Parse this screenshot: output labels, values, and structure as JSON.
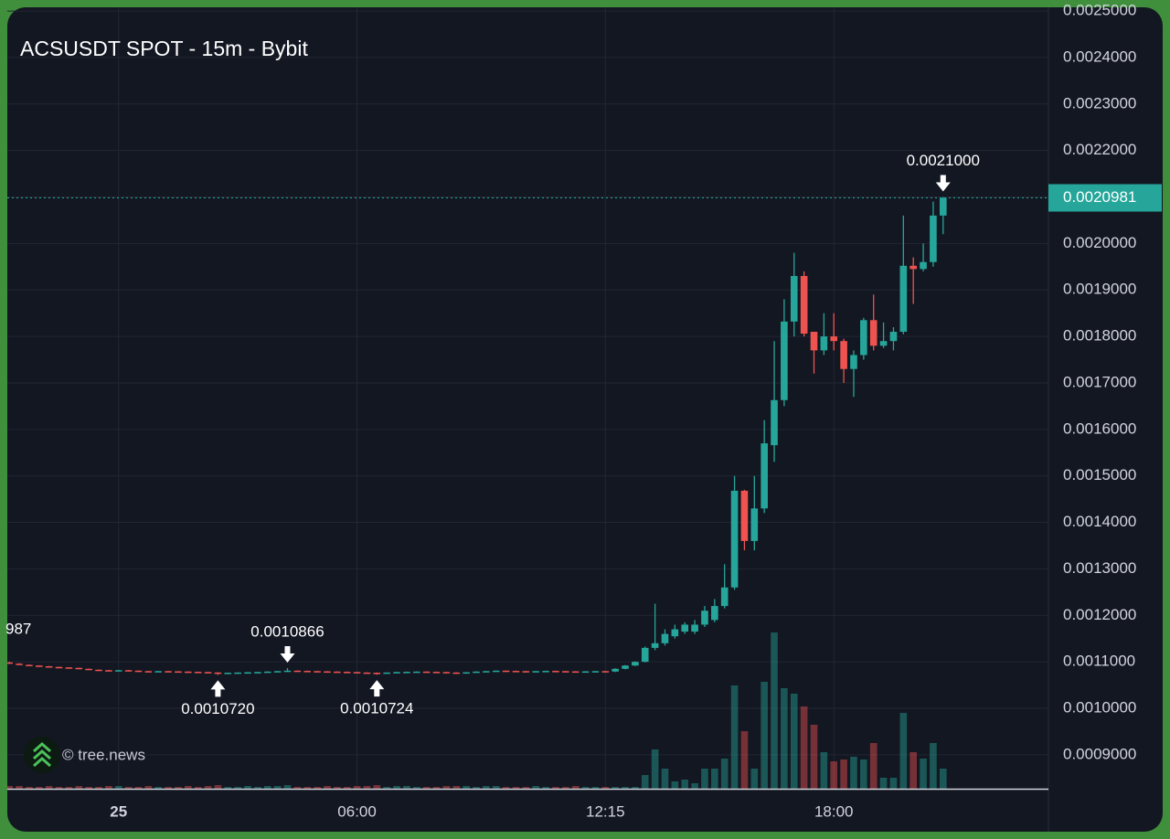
{
  "chart_data": {
    "type": "candlestick",
    "title": "ACSUSDT SPOT - 15m - Bybit",
    "watermark": "© tree.news",
    "left_label": "987",
    "colors": {
      "up": "#26a69a",
      "down": "#ef5350"
    },
    "x": [
      -2.75,
      -2.5,
      -2.25,
      -2,
      -1.75,
      -1.5,
      -1.25,
      -1,
      -0.75,
      -0.5,
      -0.25,
      0,
      0.25,
      0.5,
      0.75,
      1,
      1.25,
      1.5,
      1.75,
      2,
      2.25,
      2.5,
      2.75,
      3,
      3.25,
      3.5,
      3.75,
      4,
      4.25,
      4.5,
      4.75,
      5,
      5.25,
      5.5,
      5.75,
      6,
      6.25,
      6.5,
      6.75,
      7,
      7.25,
      7.5,
      7.75,
      8,
      8.25,
      8.5,
      8.75,
      9,
      9.25,
      9.5,
      9.75,
      10,
      10.25,
      10.5,
      10.75,
      11,
      11.25,
      11.5,
      11.75,
      12,
      12.25,
      12.5,
      12.75,
      13,
      13.25,
      13.5,
      13.75,
      14,
      14.25,
      14.5,
      14.75,
      15,
      15.25,
      15.5,
      15.75,
      16,
      16.25,
      16.5,
      16.75,
      17,
      17.25,
      17.5,
      17.75,
      18,
      18.25,
      18.5,
      18.75,
      19,
      19.25,
      19.5,
      19.75,
      20,
      20.25,
      20.5,
      20.75
    ],
    "open": [
      0.0010987,
      0.001096,
      0.0010935,
      0.001092,
      0.0010905,
      0.001089,
      0.001088,
      0.001087,
      0.001085,
      0.001083,
      0.001082,
      0.0010815,
      0.001082,
      0.001081,
      0.00108,
      0.001079,
      0.00108,
      0.0010795,
      0.001079,
      0.0010785,
      0.001078,
      0.001077,
      0.001076,
      0.0010765,
      0.001077,
      0.0010775,
      0.001078,
      0.001079,
      0.00108,
      0.001081,
      0.0010805,
      0.00108,
      0.0010795,
      0.001079,
      0.0010785,
      0.001078,
      0.001077,
      0.0010765,
      0.001076,
      0.001077,
      0.001078,
      0.0010785,
      0.001079,
      0.0010785,
      0.001078,
      0.001077,
      0.001076,
      0.0010775,
      0.001079,
      0.00108,
      0.001081,
      0.0010805,
      0.00108,
      0.0010795,
      0.00108,
      0.0010805,
      0.00108,
      0.0010795,
      0.001079,
      0.0010795,
      0.00108,
      0.001079,
      0.001085,
      0.001092,
      0.0011,
      0.00113,
      0.00114,
      0.001155,
      0.001165,
      0.001165,
      0.00118,
      0.00119,
      0.00122,
      0.00126,
      0.001468,
      0.00136,
      0.00143,
      0.001566,
      0.001663,
      0.001832,
      0.00193,
      0.00181,
      0.00177,
      0.0018,
      0.00179,
      0.00173,
      0.00176,
      0.001835,
      0.00178,
      0.00179,
      0.00181,
      0.001952,
      0.001945,
      0.00196,
      0.00206
    ],
    "high": [
      0.0011,
      0.001097,
      0.001094,
      0.0010925,
      0.001091,
      0.0010895,
      0.0010885,
      0.0010875,
      0.0010855,
      0.0010835,
      0.0010825,
      0.0010825,
      0.0010825,
      0.0010815,
      0.0010805,
      0.0010805,
      0.0010805,
      0.00108,
      0.0010795,
      0.001079,
      0.0010785,
      0.0010775,
      0.001077,
      0.0010775,
      0.001078,
      0.0010785,
      0.0010795,
      0.0010805,
      0.0010866,
      0.0010815,
      0.001081,
      0.0010805,
      0.00108,
      0.0010795,
      0.001079,
      0.0010785,
      0.0010775,
      0.001077,
      0.0010775,
      0.0010785,
      0.001079,
      0.0010795,
      0.0010795,
      0.001079,
      0.0010785,
      0.0010775,
      0.001078,
      0.0010795,
      0.0010805,
      0.0010815,
      0.0010815,
      0.001081,
      0.0010805,
      0.0010805,
      0.001081,
      0.001081,
      0.0010805,
      0.00108,
      0.00108,
      0.0010805,
      0.0010805,
      0.001086,
      0.001093,
      0.001101,
      0.001133,
      0.001225,
      0.00117,
      0.00118,
      0.001185,
      0.00119,
      0.00122,
      0.001235,
      0.00131,
      0.0015,
      0.00147,
      0.0015,
      0.00162,
      0.00179,
      0.00188,
      0.00198,
      0.00194,
      0.00181,
      0.00185,
      0.00185,
      0.001795,
      0.00177,
      0.00184,
      0.00189,
      0.00183,
      0.00182,
      0.00206,
      0.00197,
      0.002,
      0.00209,
      0.0021
    ],
    "low": [
      0.0010955,
      0.001093,
      0.0010915,
      0.00109,
      0.0010885,
      0.0010875,
      0.0010865,
      0.0010845,
      0.0010825,
      0.0010815,
      0.001081,
      0.001081,
      0.0010805,
      0.0010795,
      0.0010785,
      0.0010785,
      0.001079,
      0.0010785,
      0.001078,
      0.0010775,
      0.0010765,
      0.001072,
      0.0010755,
      0.001076,
      0.0010765,
      0.001077,
      0.0010775,
      0.0010785,
      0.0010795,
      0.00108,
      0.0010795,
      0.001079,
      0.0010785,
      0.001078,
      0.0010775,
      0.0010765,
      0.001076,
      0.0010724,
      0.0010755,
      0.0010765,
      0.0010775,
      0.001078,
      0.001078,
      0.0010775,
      0.0010765,
      0.0010755,
      0.0010755,
      0.001077,
      0.0010785,
      0.0010795,
      0.00108,
      0.0010795,
      0.001079,
      0.001079,
      0.0010795,
      0.0010795,
      0.001079,
      0.0010785,
      0.0010785,
      0.001079,
      0.0010785,
      0.001078,
      0.001084,
      0.001091,
      0.001099,
      0.001125,
      0.001135,
      0.00115,
      0.00116,
      0.00116,
      0.001175,
      0.001185,
      0.001215,
      0.001255,
      0.00134,
      0.00134,
      0.00142,
      0.00153,
      0.00165,
      0.0018,
      0.0018,
      0.00172,
      0.00176,
      0.00177,
      0.0017,
      0.00167,
      0.00175,
      0.00177,
      0.001775,
      0.00177,
      0.001805,
      0.00187,
      0.00194,
      0.00195,
      0.00202
    ],
    "close": [
      0.001096,
      0.0010935,
      0.001092,
      0.0010905,
      0.001089,
      0.001088,
      0.001087,
      0.001085,
      0.001083,
      0.001082,
      0.0010815,
      0.001082,
      0.001081,
      0.00108,
      0.001079,
      0.00108,
      0.0010795,
      0.001079,
      0.0010785,
      0.001078,
      0.001077,
      0.001076,
      0.0010765,
      0.001077,
      0.0010775,
      0.001078,
      0.001079,
      0.00108,
      0.001081,
      0.0010805,
      0.00108,
      0.0010795,
      0.001079,
      0.0010785,
      0.001078,
      0.001077,
      0.0010765,
      0.001076,
      0.001077,
      0.001078,
      0.0010785,
      0.001079,
      0.0010785,
      0.001078,
      0.001077,
      0.001076,
      0.0010775,
      0.001079,
      0.00108,
      0.001081,
      0.0010805,
      0.00108,
      0.0010795,
      0.00108,
      0.0010805,
      0.00108,
      0.0010795,
      0.001079,
      0.0010795,
      0.00108,
      0.001079,
      0.001085,
      0.001092,
      0.0011,
      0.00113,
      0.00114,
      0.00116,
      0.00117,
      0.00118,
      0.00118,
      0.00121,
      0.00122,
      0.00126,
      0.001468,
      0.00136,
      0.00143,
      0.00157,
      0.001663,
      0.001832,
      0.00193,
      0.001806,
      0.00177,
      0.0018,
      0.00179,
      0.00173,
      0.00176,
      0.001835,
      0.00178,
      0.00179,
      0.00181,
      0.001952,
      0.001945,
      0.00196,
      0.00206,
      0.0020981
    ],
    "volume": [
      3,
      3,
      2,
      2,
      3,
      2,
      2,
      3,
      2,
      2,
      3,
      3,
      2,
      2,
      3,
      2,
      2,
      2,
      3,
      2,
      3,
      4,
      2,
      2,
      3,
      2,
      3,
      3,
      4,
      2,
      2,
      2,
      3,
      2,
      2,
      3,
      3,
      4,
      2,
      3,
      3,
      2,
      2,
      2,
      3,
      3,
      3,
      2,
      3,
      3,
      2,
      2,
      2,
      3,
      2,
      2,
      2,
      3,
      2,
      2,
      2,
      2,
      2,
      2,
      15,
      43,
      22,
      8,
      10,
      6,
      22,
      22,
      33,
      113,
      63,
      22,
      117,
      171,
      110,
      104,
      90,
      70,
      40,
      30,
      32,
      35,
      32,
      50,
      12,
      12,
      83,
      40,
      33,
      50,
      22
    ],
    "xlim": [
      -2.8,
      23.4
    ],
    "xticks": [
      {
        "value": 0,
        "label": "25"
      },
      {
        "value": 6,
        "label": "06:00"
      },
      {
        "value": 12.25,
        "label": "12:15"
      },
      {
        "value": 18,
        "label": "18:00"
      }
    ],
    "ylim": [
      0.000827,
      0.002508
    ],
    "yticks": [
      {
        "value": 0.0009,
        "label": "0.0009000"
      },
      {
        "value": 0.001,
        "label": "0.0010000"
      },
      {
        "value": 0.0011,
        "label": "0.0011000"
      },
      {
        "value": 0.0012,
        "label": "0.0012000"
      },
      {
        "value": 0.0013,
        "label": "0.0013000"
      },
      {
        "value": 0.0014,
        "label": "0.0014000"
      },
      {
        "value": 0.0015,
        "label": "0.0015000"
      },
      {
        "value": 0.0016,
        "label": "0.0016000"
      },
      {
        "value": 0.0017,
        "label": "0.0017000"
      },
      {
        "value": 0.0018,
        "label": "0.0018000"
      },
      {
        "value": 0.0019,
        "label": "0.0019000"
      },
      {
        "value": 0.002,
        "label": "0.0020000"
      },
      {
        "value": 0.0021,
        "label": "0.0021000"
      },
      {
        "value": 0.0022,
        "label": "0.0022000"
      },
      {
        "value": 0.0023,
        "label": "0.0023000"
      },
      {
        "value": 0.0024,
        "label": "0.0024000"
      },
      {
        "value": 0.0025,
        "label": "0.0025000"
      }
    ],
    "grid": true,
    "last_price": {
      "value": 0.0020981,
      "label": "0.0020981"
    },
    "markers": [
      {
        "x": 20.75,
        "value": 0.0021,
        "label": "0.0021000",
        "direction": "down"
      },
      {
        "x": 4.25,
        "value": 0.0010866,
        "label": "0.0010866",
        "direction": "down"
      },
      {
        "x": 2.5,
        "value": 0.001072,
        "label": "0.0010720",
        "direction": "up"
      },
      {
        "x": 6.5,
        "value": 0.0010724,
        "label": "0.0010724",
        "direction": "up"
      }
    ]
  }
}
